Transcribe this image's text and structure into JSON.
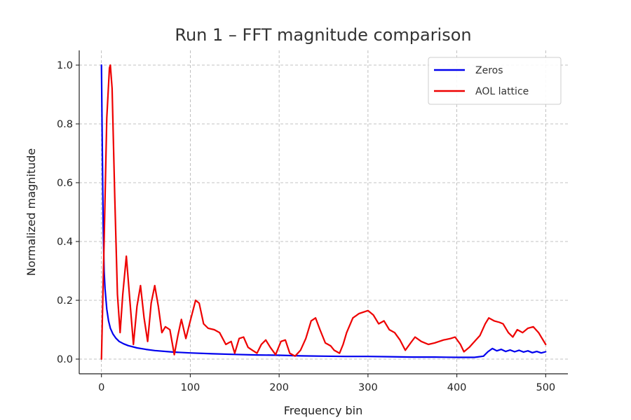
{
  "chart_data": {
    "type": "line",
    "title": "Run 1 – FFT magnitude comparison",
    "xlabel": "Frequency bin",
    "ylabel": "Normalized magnitude",
    "xlim": [
      -25,
      525
    ],
    "ylim": [
      -0.05,
      1.05
    ],
    "xticks": [
      0,
      100,
      200,
      300,
      400,
      500
    ],
    "yticks": [
      0.0,
      0.2,
      0.4,
      0.6,
      0.8,
      1.0
    ],
    "xtick_labels": [
      "0",
      "100",
      "200",
      "300",
      "400",
      "500"
    ],
    "ytick_labels": [
      "0.0",
      "0.2",
      "0.4",
      "0.6",
      "0.8",
      "1.0"
    ],
    "grid": true,
    "legend_position": "top-right",
    "series": [
      {
        "name": "Zeros",
        "color": "#0000ee",
        "x": [
          0,
          1,
          2,
          3,
          4,
          6,
          8,
          10,
          13,
          16,
          20,
          25,
          30,
          40,
          50,
          60,
          80,
          100,
          125,
          150,
          175,
          200,
          225,
          250,
          275,
          300,
          325,
          350,
          375,
          400,
          420,
          430,
          435,
          440,
          445,
          450,
          455,
          460,
          465,
          470,
          475,
          480,
          485,
          490,
          495,
          500
        ],
        "values": [
          1.0,
          0.72,
          0.45,
          0.3,
          0.24,
          0.17,
          0.13,
          0.105,
          0.085,
          0.072,
          0.06,
          0.052,
          0.046,
          0.038,
          0.033,
          0.029,
          0.024,
          0.021,
          0.018,
          0.016,
          0.014,
          0.013,
          0.011,
          0.01,
          0.009,
          0.009,
          0.008,
          0.007,
          0.007,
          0.006,
          0.006,
          0.01,
          0.025,
          0.036,
          0.028,
          0.033,
          0.026,
          0.031,
          0.025,
          0.03,
          0.024,
          0.028,
          0.022,
          0.026,
          0.021,
          0.025
        ]
      },
      {
        "name": "AOL lattice",
        "color": "#ee0000",
        "x": [
          0,
          3,
          6,
          9,
          10,
          12,
          15,
          18,
          21,
          24,
          28,
          32,
          36,
          40,
          44,
          48,
          52,
          56,
          60,
          64,
          68,
          72,
          77,
          82,
          86,
          90,
          95,
          100,
          106,
          110,
          115,
          120,
          127,
          133,
          140,
          146,
          150,
          155,
          160,
          165,
          170,
          175,
          180,
          185,
          190,
          196,
          202,
          207,
          212,
          218,
          224,
          230,
          236,
          241,
          246,
          252,
          258,
          262,
          268,
          272,
          276,
          283,
          290,
          300,
          306,
          312,
          318,
          324,
          330,
          336,
          342,
          348,
          353,
          360,
          368,
          375,
          385,
          393,
          398,
          404,
          408,
          414,
          420,
          426,
          432,
          436,
          442,
          448,
          452,
          458,
          463,
          468,
          474,
          480,
          486,
          492,
          496,
          500
        ],
        "values": [
          0.0,
          0.4,
          0.82,
          0.99,
          1.0,
          0.92,
          0.55,
          0.22,
          0.09,
          0.22,
          0.35,
          0.2,
          0.05,
          0.18,
          0.25,
          0.14,
          0.06,
          0.19,
          0.25,
          0.18,
          0.09,
          0.11,
          0.1,
          0.015,
          0.08,
          0.135,
          0.07,
          0.13,
          0.2,
          0.19,
          0.12,
          0.105,
          0.1,
          0.09,
          0.05,
          0.06,
          0.02,
          0.07,
          0.075,
          0.04,
          0.03,
          0.02,
          0.05,
          0.065,
          0.04,
          0.015,
          0.06,
          0.065,
          0.02,
          0.01,
          0.03,
          0.07,
          0.13,
          0.14,
          0.1,
          0.055,
          0.045,
          0.03,
          0.02,
          0.05,
          0.09,
          0.14,
          0.155,
          0.165,
          0.15,
          0.12,
          0.13,
          0.1,
          0.09,
          0.065,
          0.03,
          0.055,
          0.075,
          0.06,
          0.05,
          0.055,
          0.065,
          0.07,
          0.075,
          0.05,
          0.025,
          0.04,
          0.06,
          0.08,
          0.12,
          0.14,
          0.13,
          0.125,
          0.12,
          0.09,
          0.075,
          0.1,
          0.09,
          0.105,
          0.11,
          0.09,
          0.07,
          0.05
        ]
      }
    ]
  }
}
